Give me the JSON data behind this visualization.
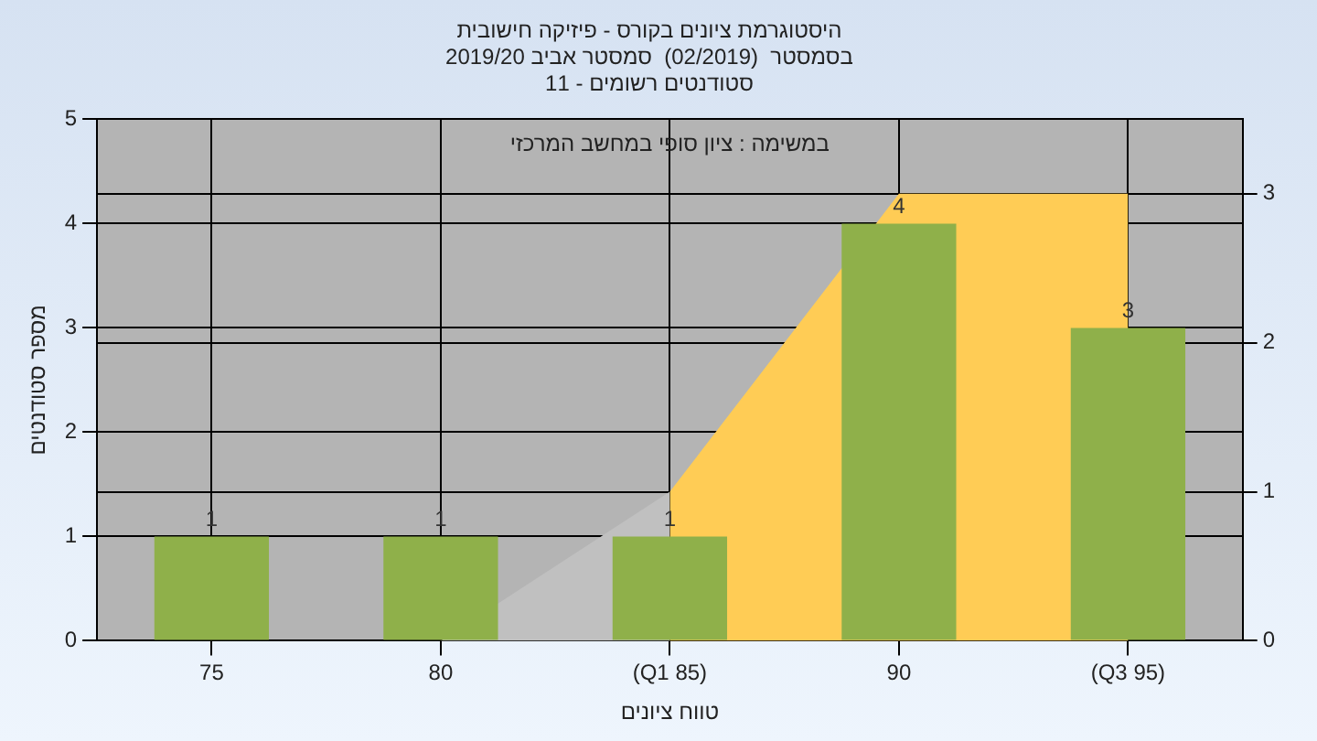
{
  "chart_data": {
    "type": "bar",
    "title": "היסטוגרמת ציונים בקורס - פיזיקה חישובית",
    "subtitle": "בסמסטר  (02/2019)  סמסטר אביב 2019/20\nסטודנטים רשומים - 11",
    "categories": [
      "75",
      "80",
      "(Q1 85)",
      "90",
      "(Q3 95)"
    ],
    "series": [
      {
        "color": "#8fb04a",
        "values": [
          1,
          1,
          1,
          4,
          3
        ],
        "value_labels": [
          "1",
          "1",
          "1",
          "4",
          "3"
        ]
      },
      {
        "type": "area",
        "axis": "y2",
        "color": "#c0c0c0",
        "values": [
          null,
          0,
          1,
          null,
          null
        ]
      },
      {
        "type": "area",
        "axis": "y2",
        "color": "#ffcc55",
        "values": [
          null,
          null,
          1,
          3,
          3
        ]
      }
    ],
    "xlabel": "טווח ציונים",
    "ylabel": "מספר סטודנטים",
    "annotations": [
      "במשימה : ציון סופי במחשב המרכזי"
    ],
    "ylim": [
      0,
      5
    ],
    "yticks": [
      0,
      1,
      2,
      3,
      4,
      5
    ],
    "y2lim": [
      0,
      3.5
    ],
    "y2ticks": [
      0,
      1,
      2,
      3
    ],
    "grid": true,
    "legend": false
  }
}
